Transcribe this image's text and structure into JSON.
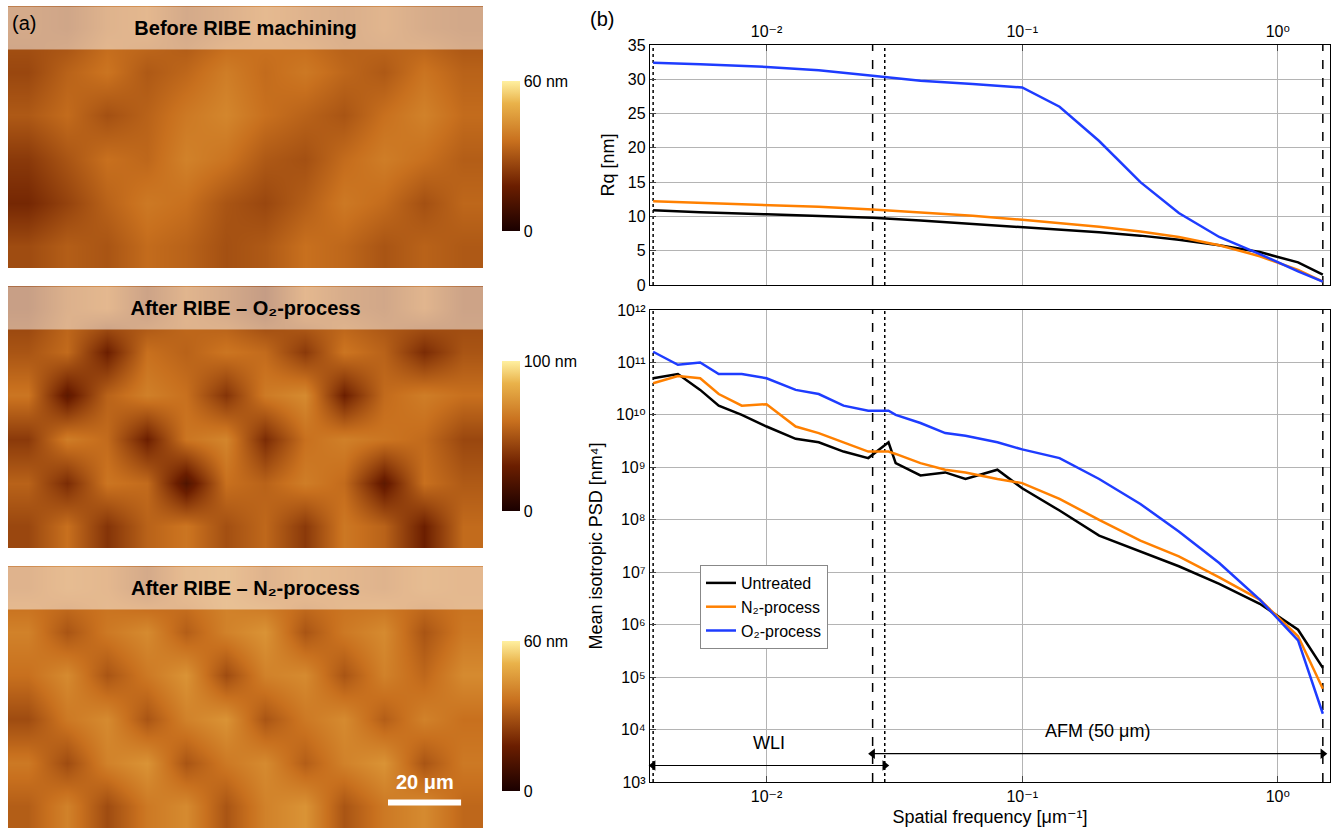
{
  "chart_data": [
    {
      "type": "heatmap",
      "panel": "(a)",
      "title": "Before RIBE machining",
      "tick_labels": false,
      "extent_um": [
        130,
        72
      ],
      "cells": [
        [
          28,
          32,
          30,
          35,
          33,
          29,
          31,
          36,
          34,
          30,
          33,
          31
        ],
        [
          20,
          26,
          33,
          38,
          36,
          30,
          27,
          32,
          38,
          35,
          29,
          34
        ],
        [
          24,
          30,
          36,
          34,
          40,
          37,
          31,
          29,
          35,
          39,
          36,
          32
        ],
        [
          31,
          35,
          29,
          33,
          38,
          41,
          36,
          33,
          30,
          36,
          40,
          35
        ],
        [
          27,
          33,
          37,
          31,
          34,
          39,
          35,
          38,
          34,
          31,
          37,
          33
        ],
        [
          30,
          28,
          34,
          36,
          30,
          33,
          37,
          34,
          32,
          35,
          31,
          29
        ]
      ],
      "colorbar": {
        "range": [
          0,
          60
        ],
        "ticks": [
          0,
          {
            "value": 60,
            "label": "60 nm"
          }
        ]
      }
    },
    {
      "type": "heatmap",
      "title": "After RIBE – O₂-process",
      "tick_labels": false,
      "extent_um": [
        130,
        72
      ],
      "cells": [
        [
          45,
          60,
          38,
          55,
          62,
          48,
          57,
          40,
          63,
          55,
          30,
          58
        ],
        [
          55,
          35,
          62,
          58,
          20,
          60,
          55,
          65,
          58,
          25,
          60,
          52
        ],
        [
          40,
          65,
          58,
          30,
          62,
          68,
          35,
          60,
          66,
          62,
          58,
          45
        ],
        [
          62,
          25,
          55,
          66,
          60,
          38,
          64,
          70,
          30,
          58,
          65,
          60
        ],
        [
          50,
          58,
          30,
          60,
          55,
          62,
          58,
          40,
          62,
          55,
          35,
          50
        ],
        [
          42,
          55,
          60,
          45,
          58,
          50,
          40,
          60,
          52,
          48,
          58,
          45
        ]
      ],
      "colorbar": {
        "range": [
          0,
          100
        ],
        "ticks": [
          0,
          {
            "value": 100,
            "label": "100 nm"
          }
        ]
      }
    },
    {
      "type": "heatmap",
      "title": "After RIBE – N₂-process",
      "tick_labels": false,
      "extent_um": [
        130,
        72
      ],
      "cells": [
        [
          32,
          40,
          28,
          38,
          42,
          30,
          40,
          44,
          30,
          38,
          42,
          34
        ],
        [
          38,
          28,
          40,
          44,
          30,
          38,
          42,
          32,
          40,
          44,
          30,
          38
        ],
        [
          28,
          38,
          42,
          30,
          40,
          44,
          30,
          38,
          42,
          32,
          40,
          36
        ],
        [
          36,
          42,
          30,
          38,
          44,
          28,
          40,
          42,
          30,
          40,
          34,
          42
        ],
        [
          40,
          30,
          38,
          42,
          32,
          40,
          44,
          30,
          38,
          42,
          30,
          38
        ],
        [
          34,
          38,
          36,
          30,
          38,
          40,
          34,
          38,
          36,
          34,
          38,
          36
        ]
      ],
      "colorbar": {
        "range": [
          0,
          60
        ],
        "ticks": [
          0,
          {
            "value": 60,
            "label": "60 nm"
          }
        ]
      },
      "scale_bar": {
        "length": 20,
        "label": "20 μm"
      }
    },
    {
      "type": "line",
      "panel": "(b)",
      "ylabel": "Rq [nm]",
      "log": "x",
      "grid": true,
      "x": [
        0.0036,
        0.0055,
        0.01,
        0.016,
        0.026,
        0.04,
        0.064,
        0.1,
        0.14,
        0.2,
        0.29,
        0.41,
        0.59,
        0.85,
        1.2,
        1.5
      ],
      "series": [
        {
          "name": "Untreated",
          "color": "#000000",
          "values": [
            10.9,
            10.6,
            10.3,
            10.1,
            9.8,
            9.4,
            8.9,
            8.5,
            8.1,
            7.7,
            7.2,
            6.6,
            5.8,
            4.8,
            3.3,
            1.5
          ]
        },
        {
          "name": "N₂-process",
          "color": "#ff8000",
          "values": [
            12.2,
            12.0,
            11.7,
            11.4,
            11.0,
            10.6,
            10.1,
            9.5,
            9.0,
            8.5,
            7.8,
            7.0,
            5.8,
            4.2,
            2.2,
            0.5
          ]
        },
        {
          "name": "O₂-process",
          "color": "#1e3cff",
          "values": [
            32.4,
            32.2,
            31.8,
            31.3,
            30.5,
            29.8,
            29.3,
            28.8,
            26.0,
            21.0,
            15.0,
            10.5,
            7.0,
            4.5,
            2.0,
            0.5
          ]
        }
      ],
      "xlim": [
        0.0035,
        1.6
      ],
      "xticks": [
        {
          "value": 0.01,
          "label": "10⁻²"
        },
        {
          "value": 0.1,
          "label": "10⁻¹"
        },
        {
          "value": 1,
          "label": "10⁰"
        }
      ],
      "ylim": [
        0,
        35
      ],
      "yticks": [
        0,
        5,
        10,
        15,
        20,
        25,
        30,
        35
      ],
      "ranges": [
        {
          "from": 0.0036,
          "to": 0.029,
          "line_style": "dotted"
        },
        {
          "from": 0.026,
          "to": 1.5,
          "line_style": "dashed"
        }
      ]
    },
    {
      "type": "line",
      "xlabel": "Spatial frequency [μm⁻¹]",
      "ylabel": "Mean isotropic PSD [nm⁴]",
      "log": true,
      "grid": true,
      "legend": "lower left",
      "x": [
        0.0036,
        0.0045,
        0.0055,
        0.0065,
        0.008,
        0.01,
        0.013,
        0.016,
        0.02,
        0.025,
        0.03,
        0.032,
        0.04,
        0.05,
        0.06,
        0.08,
        0.1,
        0.14,
        0.2,
        0.29,
        0.41,
        0.59,
        0.85,
        1.2,
        1.5
      ],
      "series": [
        {
          "name": "Untreated",
          "color": "#000000",
          "values": [
            50000000000.0,
            60000000000.0,
            30000000000.0,
            15000000000.0,
            10000000000.0,
            6000000000.0,
            3500000000.0,
            3000000000.0,
            2000000000.0,
            1500000000.0,
            3000000000.0,
            1200000000.0,
            700000000.0,
            800000000.0,
            600000000.0,
            900000000.0,
            400000000.0,
            150000000.0,
            50000000.0,
            25000000.0,
            13000000.0,
            6000000.0,
            2500000.0,
            800000.0,
            150000.0
          ]
        },
        {
          "name": "N₂-process",
          "color": "#ff8000",
          "values": [
            40000000000.0,
            55000000000.0,
            50000000000.0,
            25000000000.0,
            15000000000.0,
            16000000000.0,
            6000000000.0,
            4500000000.0,
            3000000000.0,
            2000000000.0,
            2000000000.0,
            1800000000.0,
            1200000000.0,
            900000000.0,
            800000000.0,
            600000000.0,
            500000000.0,
            250000000.0,
            100000000.0,
            40000000.0,
            20000000.0,
            8000000.0,
            3000000.0,
            600000.0,
            60000.0
          ]
        },
        {
          "name": "O₂-process",
          "color": "#1e3cff",
          "values": [
            160000000000.0,
            90000000000.0,
            100000000000.0,
            60000000000.0,
            60000000000.0,
            50000000000.0,
            30000000000.0,
            25000000000.0,
            15000000000.0,
            12000000000.0,
            12000000000.0,
            10000000000.0,
            7000000000.0,
            4500000000.0,
            4000000000.0,
            3000000000.0,
            2200000000.0,
            1500000000.0,
            600000000.0,
            200000000.0,
            60000000.0,
            15000000.0,
            3000000.0,
            500000.0,
            20000.0
          ]
        }
      ],
      "xlim": [
        0.0035,
        1.6
      ],
      "xticks": [
        {
          "value": 0.01,
          "label": "10⁻²"
        },
        {
          "value": 0.1,
          "label": "10⁻¹"
        },
        {
          "value": 1,
          "label": "10⁰"
        }
      ],
      "ylim": [
        1000,
        1000000000000
      ],
      "yticks": [
        {
          "value": 1000,
          "label": "10³"
        },
        {
          "value": 10000,
          "label": "10⁴"
        },
        {
          "value": 100000,
          "label": "10⁵"
        },
        {
          "value": 1000000,
          "label": "10⁶"
        },
        {
          "value": 10000000,
          "label": "10⁷"
        },
        {
          "value": 100000000,
          "label": "10⁸"
        },
        {
          "value": 1000000000,
          "label": "10⁹"
        },
        {
          "value": 10000000000,
          "label": "10¹⁰"
        },
        {
          "value": 100000000000,
          "label": "10¹¹"
        },
        {
          "value": 1000000000000,
          "label": "10¹²"
        }
      ],
      "ranges": [
        {
          "label": "WLI",
          "from": 0.0036,
          "to": 0.029,
          "line_style": "dotted"
        },
        {
          "label": "AFM (50 μm)",
          "from": 0.026,
          "to": 1.5,
          "line_style": "dashed"
        }
      ]
    }
  ]
}
